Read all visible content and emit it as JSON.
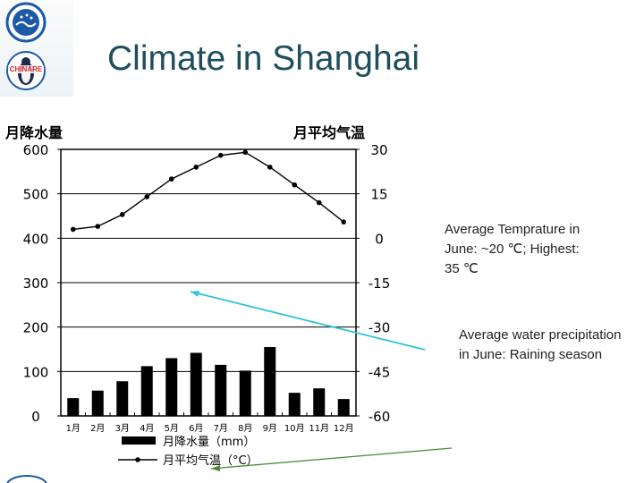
{
  "title": "Climate in Shanghai",
  "logos": [
    {
      "name": "seal-logo",
      "color": "#1d5aa6"
    },
    {
      "name": "penguin-logo",
      "text": "CHINARE",
      "color": "#d8242a"
    }
  ],
  "annotations": {
    "temperature": "Average Temprature in June: ~20 ℃; Highest: 35 ℃",
    "precipitation": "Average water precipitation in June: Raining season"
  },
  "colors": {
    "title": "#1f4e5e",
    "bar": "#000000",
    "line": "#000000",
    "arrow_temperature": "#2ec5d6",
    "arrow_precipitation": "#4a8a3a"
  },
  "chart_data": {
    "type": "bar",
    "left_axis_label": "月降水量",
    "right_axis_label": "月平均气温",
    "categories": [
      "1月",
      "2月",
      "3月",
      "4月",
      "5月",
      "6月",
      "7月",
      "8月",
      "9月",
      "10月",
      "11月",
      "12月"
    ],
    "left_ticks": [
      "600",
      "500",
      "400",
      "300",
      "200",
      "100",
      "0"
    ],
    "right_ticks": [
      "30",
      "15",
      "0",
      "-15",
      "-30",
      "-45",
      "-60"
    ],
    "ylim_left": [
      0,
      600
    ],
    "ylim_right": [
      -60,
      30
    ],
    "grid": true,
    "legend": [
      {
        "label": "月降水量（mm）",
        "kind": "bar"
      },
      {
        "label": "月平均气温（°C）",
        "kind": "line"
      }
    ],
    "series": [
      {
        "name": "月降水量（mm）",
        "kind": "bar",
        "axis": "left",
        "values": [
          40,
          57,
          78,
          112,
          130,
          142,
          115,
          102,
          155,
          52,
          62,
          38
        ]
      },
      {
        "name": "月平均气温（°C）",
        "kind": "line",
        "axis": "right",
        "values": [
          3,
          4,
          8,
          14,
          20,
          24,
          28,
          29,
          24,
          18,
          12,
          5.5
        ]
      }
    ]
  }
}
